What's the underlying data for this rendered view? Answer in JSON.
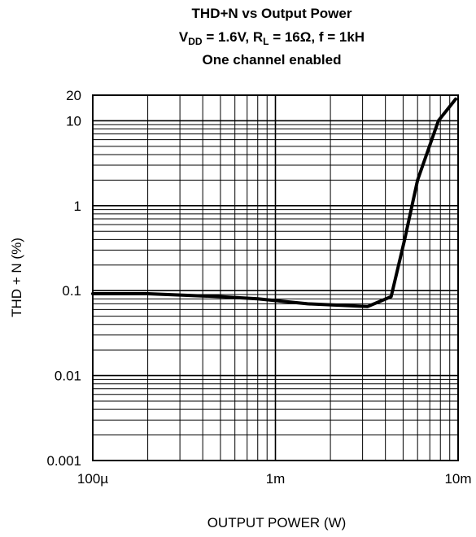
{
  "chart_data": {
    "type": "line",
    "title": {
      "line1": "THD+N vs Output Power",
      "line2": {
        "v": "V",
        "v_sub": "DD",
        "v_rest": " = 1.6V, R",
        "r_sub": "L",
        "r_rest": " = 16Ω, f = 1kH"
      },
      "line3": "One channel enabled"
    },
    "xlabel": "OUTPUT POWER (W)",
    "ylabel": "THD + N (%)",
    "x_scale": "log",
    "y_scale": "log",
    "xlim": [
      0.0001,
      0.01
    ],
    "ylim": [
      0.001,
      20
    ],
    "x_ticks": [
      {
        "value": 0.0001,
        "label": "100µ"
      },
      {
        "value": 0.001,
        "label": "1m"
      },
      {
        "value": 0.01,
        "label": "10m"
      }
    ],
    "y_ticks": [
      {
        "value": 20,
        "label": "20"
      },
      {
        "value": 10,
        "label": "10"
      },
      {
        "value": 1,
        "label": "1"
      },
      {
        "value": 0.1,
        "label": "0.1"
      },
      {
        "value": 0.01,
        "label": "0.01"
      },
      {
        "value": 0.001,
        "label": "0.001"
      }
    ],
    "grid": true,
    "series": [
      {
        "x": [
          0.0001,
          0.0002,
          0.0005,
          0.0008,
          0.0015,
          0.0032,
          0.0043,
          0.0051,
          0.006,
          0.0078,
          0.0097
        ],
        "y": [
          0.092,
          0.092,
          0.085,
          0.08,
          0.07,
          0.065,
          0.085,
          0.4,
          2.0,
          10.0,
          18.0
        ]
      }
    ]
  }
}
